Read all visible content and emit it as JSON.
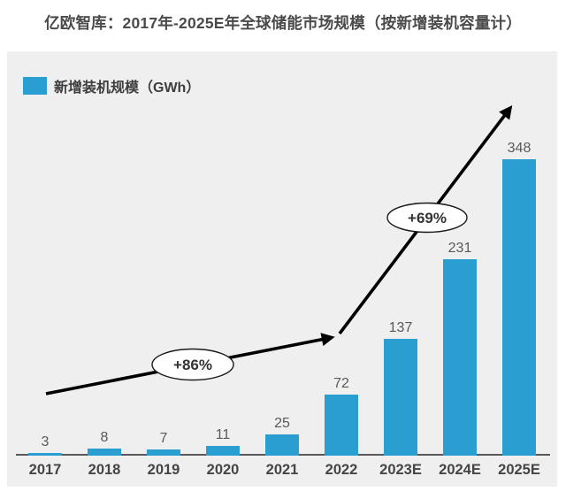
{
  "page": {
    "title": "亿欧智库：2017年-2025E年全球储能市场规模（按新增装机容量计）"
  },
  "legend": {
    "label": "新增装机规模（GWh）",
    "swatch_color": "#2a9dd1"
  },
  "annotations": {
    "growth_1": "+86%",
    "growth_2": "+69%"
  },
  "colors": {
    "bar": "#2a9dd1",
    "panel_background": "#efefef",
    "axis": "#595959",
    "value_label": "#595959",
    "category_label": "#454545",
    "title": "#4a4a4a",
    "arrow": "#000000"
  },
  "chart_data": {
    "type": "bar",
    "title": "亿欧智库：2017年-2025E年全球储能市场规模（按新增装机容量计）",
    "series_name": "新增装机规模（GWh）",
    "categories": [
      "2017",
      "2018",
      "2019",
      "2020",
      "2021",
      "2022",
      "2023E",
      "2024E",
      "2025E"
    ],
    "values": [
      3,
      8,
      7,
      11,
      25,
      72,
      137,
      231,
      348
    ],
    "unit": "GWh",
    "xlabel": "",
    "ylabel": "新增装机规模（GWh）",
    "ylim": [
      0,
      475
    ],
    "grid": false,
    "legend_position": "top-left",
    "bar_color": "#2a9dd1",
    "annotations": [
      {
        "label": "+86%",
        "from": "2017",
        "to": "2022",
        "shape": "ellipse-on-arrow"
      },
      {
        "label": "+69%",
        "from": "2022",
        "to": "2025E",
        "shape": "ellipse-on-arrow"
      }
    ]
  }
}
